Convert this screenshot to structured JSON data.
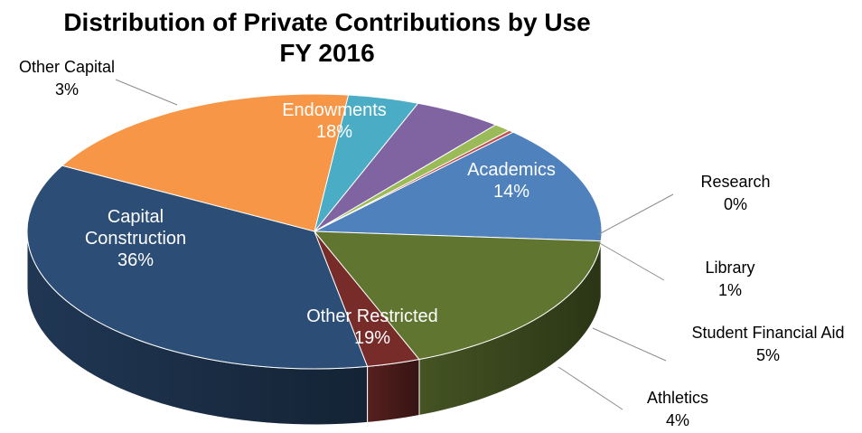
{
  "chart_data": {
    "type": "pie",
    "title": "Distribution of Private Contributions by Use",
    "subtitle": "FY 2016",
    "slices": [
      {
        "label": "Academics",
        "value": 14,
        "value_label": "14%",
        "color": "#4f81bd"
      },
      {
        "label": "Research",
        "value": 0.3,
        "value_label": "0%",
        "color": "#c0504d"
      },
      {
        "label": "Library",
        "value": 1,
        "value_label": "1%",
        "color": "#9bbb59"
      },
      {
        "label": "Student Financial Aid",
        "value": 5,
        "value_label": "5%",
        "color": "#8064a2"
      },
      {
        "label": "Athletics",
        "value": 4,
        "value_label": "4%",
        "color": "#4bacc6"
      },
      {
        "label": "Other Restricted",
        "value": 19,
        "value_label": "19%",
        "color": "#f79646"
      },
      {
        "label": "Capital Construction",
        "value": 36,
        "value_label": "36%",
        "color": "#2c4d75"
      },
      {
        "label": "Other Capital",
        "value": 3,
        "value_label": "3%",
        "color": "#772c2a"
      },
      {
        "label": "Endowments",
        "value": 18,
        "value_label": "18%",
        "color": "#5f7530"
      }
    ]
  }
}
